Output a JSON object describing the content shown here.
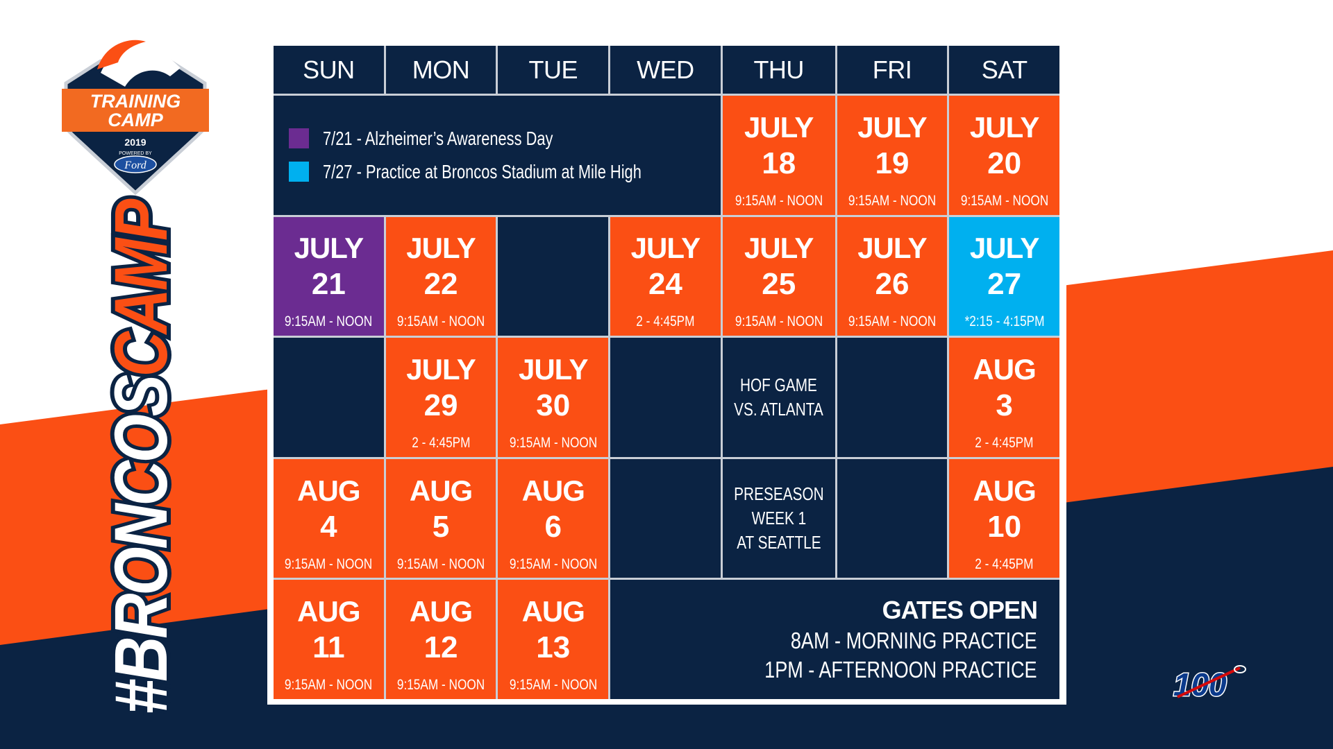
{
  "colors": {
    "navy": "#0b2343",
    "orange": "#fb4f14",
    "purple": "#6b2c91",
    "cyan": "#00b0ef"
  },
  "logo": {
    "line1": "TRAINING",
    "line2": "CAMP",
    "year": "2019",
    "powered": "POWERED BY",
    "sponsor": "Ford"
  },
  "hashtag": {
    "part1": "#BRONCOS",
    "part2": "CAMP"
  },
  "nfl_logo": "100",
  "days": [
    "SUN",
    "MON",
    "TUE",
    "WED",
    "THU",
    "FRI",
    "SAT"
  ],
  "legend": [
    {
      "color": "purple",
      "text": "7/21 - Alzheimer’s Awareness Day"
    },
    {
      "color": "cyan",
      "text": "7/27 - Practice at Broncos Stadium at Mile High"
    }
  ],
  "gates": {
    "title": "GATES OPEN",
    "line1": "8AM - MORNING PRACTICE",
    "line2": "1PM - AFTERNOON PRACTICE"
  },
  "rows": [
    [
      {
        "type": "legend"
      },
      {
        "type": "day",
        "color": "orange",
        "month": "JULY",
        "day": "18",
        "time": "9:15AM - NOON"
      },
      {
        "type": "day",
        "color": "orange",
        "month": "JULY",
        "day": "19",
        "time": "9:15AM - NOON"
      },
      {
        "type": "day",
        "color": "orange",
        "month": "JULY",
        "day": "20",
        "time": "9:15AM - NOON"
      }
    ],
    [
      {
        "type": "day",
        "color": "purple",
        "month": "JULY",
        "day": "21",
        "time": "9:15AM - NOON"
      },
      {
        "type": "day",
        "color": "orange",
        "month": "JULY",
        "day": "22",
        "time": "9:15AM - NOON"
      },
      {
        "type": "empty"
      },
      {
        "type": "day",
        "color": "orange",
        "month": "JULY",
        "day": "24",
        "time": "2 - 4:45PM"
      },
      {
        "type": "day",
        "color": "orange",
        "month": "JULY",
        "day": "25",
        "time": "9:15AM - NOON"
      },
      {
        "type": "day",
        "color": "orange",
        "month": "JULY",
        "day": "26",
        "time": "9:15AM - NOON"
      },
      {
        "type": "day",
        "color": "cyan",
        "month": "JULY",
        "day": "27",
        "time": "*2:15 - 4:15PM"
      }
    ],
    [
      {
        "type": "empty"
      },
      {
        "type": "day",
        "color": "orange",
        "month": "JULY",
        "day": "29",
        "time": "2 - 4:45PM"
      },
      {
        "type": "day",
        "color": "orange",
        "month": "JULY",
        "day": "30",
        "time": "9:15AM - NOON"
      },
      {
        "type": "empty"
      },
      {
        "type": "note",
        "lines": [
          "HOF GAME",
          "VS. ATLANTA"
        ]
      },
      {
        "type": "empty"
      },
      {
        "type": "day",
        "color": "orange",
        "month": "AUG",
        "day": "3",
        "time": "2 - 4:45PM"
      }
    ],
    [
      {
        "type": "day",
        "color": "orange",
        "month": "AUG",
        "day": "4",
        "time": "9:15AM - NOON"
      },
      {
        "type": "day",
        "color": "orange",
        "month": "AUG",
        "day": "5",
        "time": "9:15AM - NOON"
      },
      {
        "type": "day",
        "color": "orange",
        "month": "AUG",
        "day": "6",
        "time": "9:15AM - NOON"
      },
      {
        "type": "empty"
      },
      {
        "type": "note",
        "lines": [
          "PRESEASON",
          "WEEK 1",
          "AT SEATTLE"
        ]
      },
      {
        "type": "empty"
      },
      {
        "type": "day",
        "color": "orange",
        "month": "AUG",
        "day": "10",
        "time": "2 - 4:45PM"
      }
    ],
    [
      {
        "type": "day",
        "color": "orange",
        "month": "AUG",
        "day": "11",
        "time": "9:15AM - NOON"
      },
      {
        "type": "day",
        "color": "orange",
        "month": "AUG",
        "day": "12",
        "time": "9:15AM - NOON"
      },
      {
        "type": "day",
        "color": "orange",
        "month": "AUG",
        "day": "13",
        "time": "9:15AM - NOON"
      },
      {
        "type": "gates"
      }
    ]
  ]
}
